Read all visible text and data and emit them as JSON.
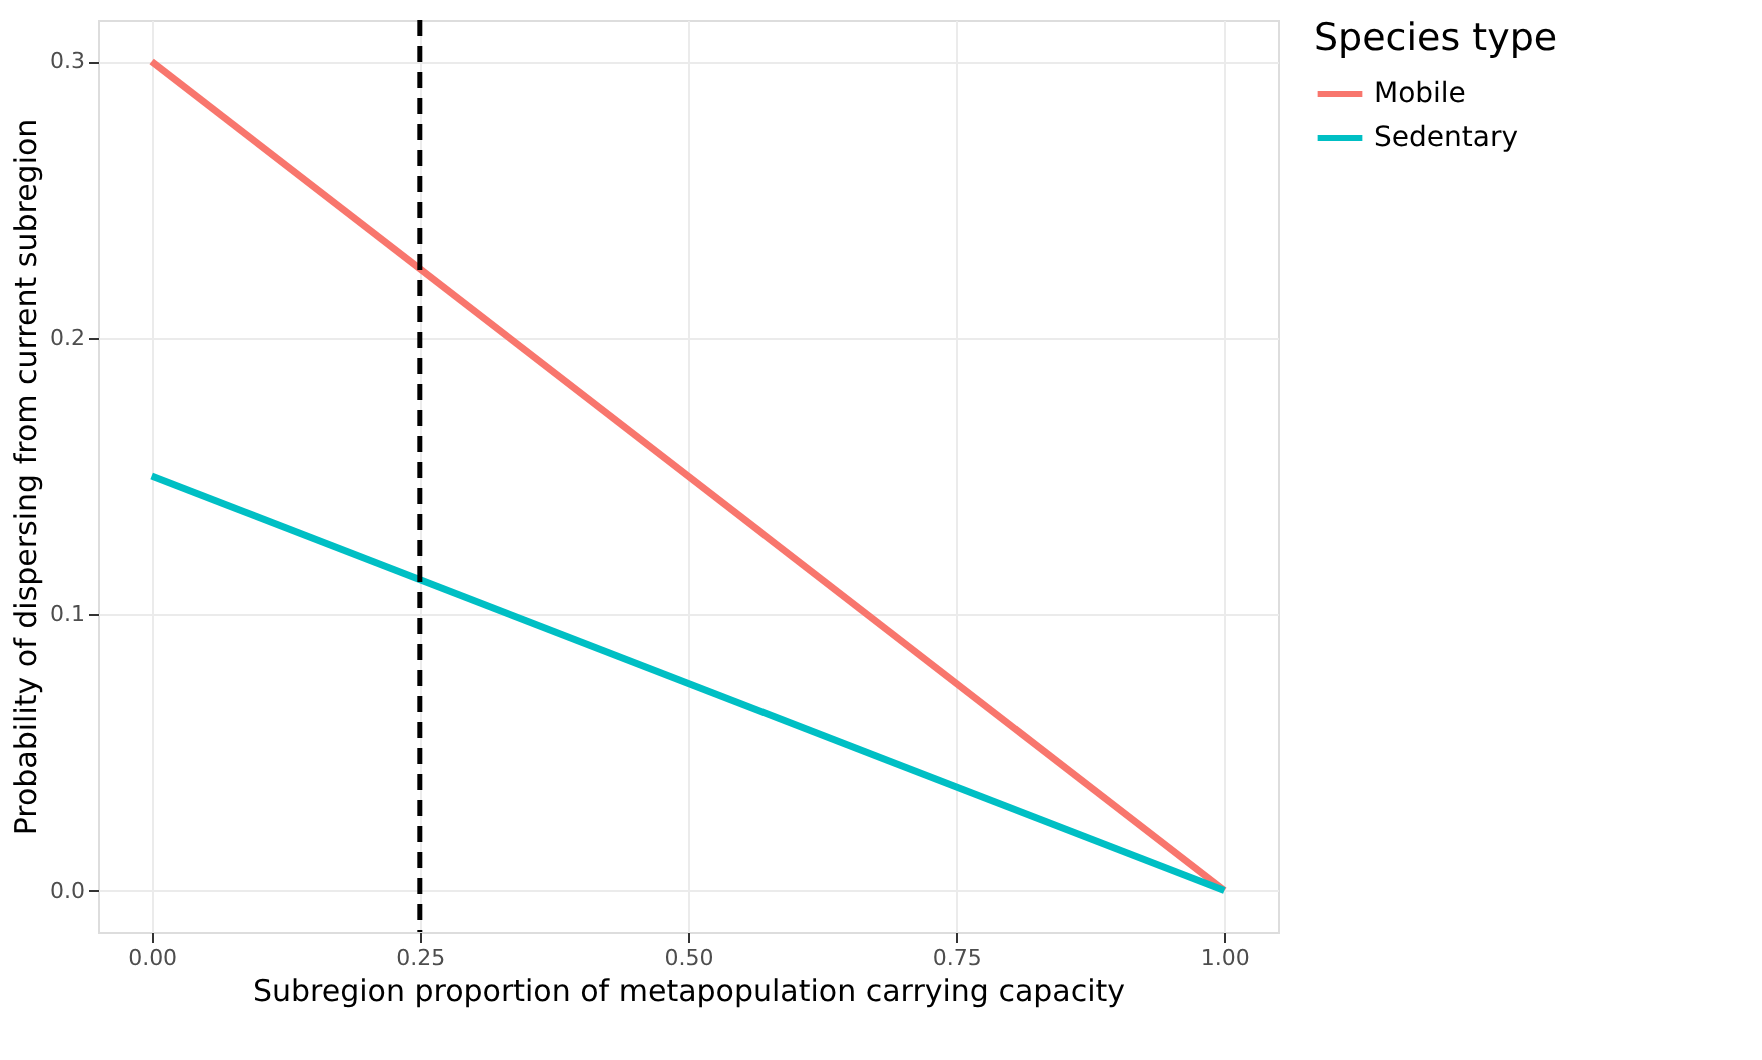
{
  "chart_data": {
    "type": "line",
    "xlabel": "Subregion proportion of metapopulation carrying capacity",
    "ylabel": "Probability of dispersing from current subregion",
    "legend_title": "Species type",
    "x": [
      0,
      1
    ],
    "series": [
      {
        "name": "Mobile",
        "color": "#f8766d",
        "values": [
          0.3,
          0
        ]
      },
      {
        "name": "Sedentary",
        "color": "#00bfc4",
        "values": [
          0.15,
          0
        ]
      }
    ],
    "xlim": [
      -0.05,
      1.05
    ],
    "ylim": [
      -0.015,
      0.315
    ],
    "xticks": [
      {
        "value": 0,
        "label": "0.00"
      },
      {
        "value": 0.25,
        "label": "0.25"
      },
      {
        "value": 0.5,
        "label": "0.50"
      },
      {
        "value": 0.75,
        "label": "0.75"
      },
      {
        "value": 1,
        "label": "1.00"
      }
    ],
    "yticks": [
      {
        "value": 0,
        "label": "0.0"
      },
      {
        "value": 0.1,
        "label": "0.1"
      },
      {
        "value": 0.2,
        "label": "0.2"
      },
      {
        "value": 0.3,
        "label": "0.3"
      }
    ],
    "ref_lines": [
      {
        "axis": "x",
        "value": 0.25,
        "color": "#000000",
        "line_style": "dashed"
      }
    ],
    "grid": true,
    "legend": "right",
    "line_style": "solid",
    "marker": "none"
  }
}
